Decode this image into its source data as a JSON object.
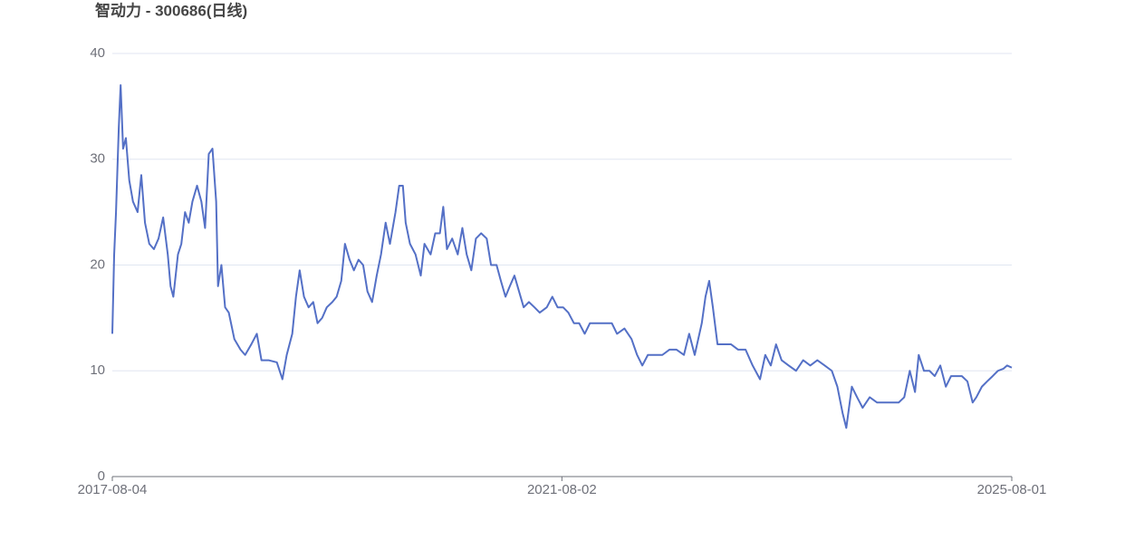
{
  "chart_data": {
    "type": "line",
    "title": "智动力 - 300686(日线)",
    "color": "#5470c6",
    "grid": true,
    "ylim": [
      0,
      40
    ],
    "yticks": [
      0,
      10,
      20,
      30,
      40
    ],
    "xlim": [
      "2017-08-04",
      "2025-08-01"
    ],
    "xticks": [
      "2017-08-04",
      "2021-08-02",
      "2025-08-01"
    ],
    "x": [
      "2017-08-04",
      "2017-08-10",
      "2017-08-16",
      "2017-08-25",
      "2017-08-31",
      "2017-09-08",
      "2017-09-17",
      "2017-09-28",
      "2017-10-10",
      "2017-10-25",
      "2017-11-06",
      "2017-11-18",
      "2017-12-02",
      "2017-12-17",
      "2018-01-01",
      "2018-01-16",
      "2018-01-31",
      "2018-02-09",
      "2018-02-18",
      "2018-03-05",
      "2018-03-16",
      "2018-03-28",
      "2018-04-09",
      "2018-04-21",
      "2018-05-06",
      "2018-05-20",
      "2018-06-01",
      "2018-06-13",
      "2018-06-25",
      "2018-07-07",
      "2018-07-13",
      "2018-07-24",
      "2018-08-05",
      "2018-08-17",
      "2018-09-04",
      "2018-09-24",
      "2018-10-09",
      "2018-10-29",
      "2018-11-16",
      "2018-12-01",
      "2018-12-24",
      "2019-01-20",
      "2019-02-07",
      "2019-02-21",
      "2019-03-11",
      "2019-03-23",
      "2019-04-04",
      "2019-04-18",
      "2019-05-03",
      "2019-05-18",
      "2019-06-01",
      "2019-06-16",
      "2019-07-01",
      "2019-07-19",
      "2019-08-02",
      "2019-08-17",
      "2019-08-29",
      "2019-09-13",
      "2019-09-27",
      "2019-10-12",
      "2019-10-27",
      "2019-11-10",
      "2019-11-25",
      "2019-12-10",
      "2019-12-24",
      "2020-01-08",
      "2020-01-22",
      "2020-02-09",
      "2020-02-21",
      "2020-03-04",
      "2020-03-13",
      "2020-03-27",
      "2020-04-14",
      "2020-05-01",
      "2020-05-13",
      "2020-06-02",
      "2020-06-17",
      "2020-07-02",
      "2020-07-13",
      "2020-07-25",
      "2020-08-11",
      "2020-08-29",
      "2020-09-13",
      "2020-09-27",
      "2020-10-12",
      "2020-10-27",
      "2020-11-13",
      "2020-12-01",
      "2020-12-15",
      "2021-01-02",
      "2021-01-16",
      "2021-01-31",
      "2021-02-14",
      "2021-03-01",
      "2021-03-16",
      "2021-03-31",
      "2021-04-17",
      "2021-05-05",
      "2021-05-22",
      "2021-06-14",
      "2021-07-02",
      "2021-07-19",
      "2021-08-06",
      "2021-08-23",
      "2021-09-10",
      "2021-09-27",
      "2021-10-15",
      "2021-11-01",
      "2021-11-25",
      "2021-12-18",
      "2022-01-11",
      "2022-01-28",
      "2022-02-21",
      "2022-03-16",
      "2022-04-03",
      "2022-04-20",
      "2022-05-08",
      "2022-05-31",
      "2022-06-24",
      "2022-07-17",
      "2022-08-09",
      "2022-09-02",
      "2022-09-19",
      "2022-10-07",
      "2022-10-30",
      "2022-11-11",
      "2022-11-23",
      "2022-12-05",
      "2022-12-20",
      "2023-01-09",
      "2023-02-02",
      "2023-02-25",
      "2023-03-21",
      "2023-04-13",
      "2023-05-07",
      "2023-05-24",
      "2023-06-11",
      "2023-06-28",
      "2023-07-16",
      "2023-08-08",
      "2023-09-01",
      "2023-09-24",
      "2023-10-17",
      "2023-11-09",
      "2023-12-03",
      "2023-12-26",
      "2024-01-13",
      "2024-01-30",
      "2024-02-11",
      "2024-02-29",
      "2024-03-17",
      "2024-04-04",
      "2024-04-27",
      "2024-05-21",
      "2024-06-13",
      "2024-07-07",
      "2024-07-30",
      "2024-08-17",
      "2024-09-04",
      "2024-09-21",
      "2024-10-03",
      "2024-10-20",
      "2024-11-07",
      "2024-11-24",
      "2024-12-12",
      "2024-12-30",
      "2025-01-16",
      "2025-02-03",
      "2025-02-20",
      "2025-03-10",
      "2025-03-27",
      "2025-04-08",
      "2025-04-26",
      "2025-05-13",
      "2025-05-31",
      "2025-06-17",
      "2025-07-05",
      "2025-07-17",
      "2025-08-01"
    ],
    "values": [
      13.5,
      21,
      25,
      33,
      37,
      31,
      32,
      28,
      26,
      25,
      28.5,
      24,
      22,
      21.5,
      22.5,
      24.5,
      21,
      18,
      17,
      21,
      22,
      25,
      24,
      26,
      27.5,
      26,
      23.5,
      30.5,
      31,
      26,
      18,
      20,
      16,
      15.5,
      13,
      12,
      11.5,
      12.5,
      13.5,
      11,
      11,
      10.8,
      9.2,
      11.5,
      13.5,
      17,
      19.5,
      17,
      16,
      16.5,
      14.5,
      15,
      16,
      16.5,
      17,
      18.5,
      22,
      20.5,
      19.5,
      20.5,
      20,
      17.5,
      16.5,
      19,
      21,
      24,
      22,
      25,
      27.5,
      27.5,
      24,
      22,
      21,
      19,
      22,
      21,
      23,
      23,
      25.5,
      21.5,
      22.5,
      21,
      23.5,
      21,
      19.5,
      22.5,
      23,
      22.5,
      20,
      20,
      18.5,
      17,
      18,
      19,
      17.5,
      16,
      16.5,
      16,
      15.5,
      16,
      17,
      16,
      16,
      15.5,
      14.5,
      14.5,
      13.5,
      14.5,
      14.5,
      14.5,
      14.5,
      13.5,
      14,
      13,
      11.5,
      10.5,
      11.5,
      11.5,
      11.5,
      12,
      12,
      11.5,
      13.5,
      11.5,
      14.5,
      17,
      18.5,
      16,
      12.5,
      12.5,
      12.5,
      12,
      12,
      10.5,
      9.2,
      11.5,
      10.5,
      12.5,
      11,
      10.5,
      10,
      11,
      10.5,
      11,
      10.5,
      10,
      8.5,
      6,
      4.6,
      8.5,
      7.5,
      6.5,
      7.5,
      7,
      7,
      7,
      7,
      7.5,
      10,
      8,
      11.5,
      10,
      10,
      9.5,
      10.5,
      8.5,
      9.5,
      9.5,
      9.5,
      9,
      7,
      7.5,
      8.5,
      9,
      9.5,
      10,
      10.2,
      10.5,
      10.3
    ]
  }
}
